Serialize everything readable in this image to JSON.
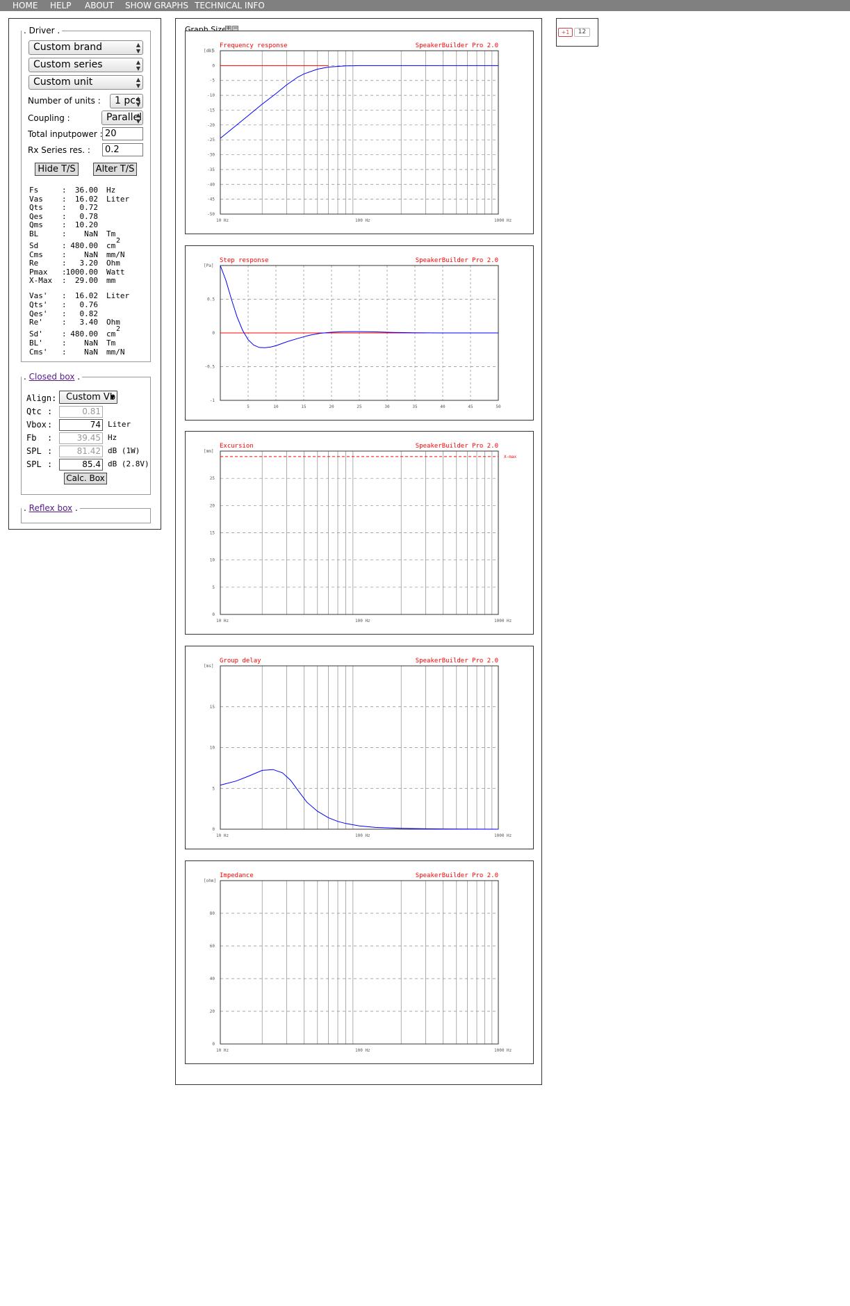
{
  "menu": [
    "HOME",
    "HELP",
    "ABOUT",
    "SHOW GRAPHS",
    "TECHNICAL INFO"
  ],
  "driver": {
    "legend": "Driver",
    "brand": "Custom brand",
    "series": "Custom series",
    "unit": "Custom unit",
    "units_label": "Number of units :",
    "units_value": "1 pcs",
    "coupling_label": "Coupling :",
    "coupling_value": "Parallel",
    "power_label": "Total inputpower :",
    "power_value": "20",
    "rx_label": "Rx Series res. :",
    "rx_value": "0.2",
    "hide_ts": "Hide T/S",
    "alter_ts": "Alter T/S",
    "ts_params": [
      {
        "name": "Fs",
        "value": "36.00",
        "unit": "Hz"
      },
      {
        "name": "Vas",
        "value": "16.02",
        "unit": "Liter"
      },
      {
        "name": "Qts",
        "value": "0.72",
        "unit": ""
      },
      {
        "name": "Qes",
        "value": "0.78",
        "unit": ""
      },
      {
        "name": "Qms",
        "value": "10.20",
        "unit": ""
      },
      {
        "name": "BL",
        "value": "NaN",
        "unit": "Tm"
      },
      {
        "name": "Sd",
        "value": "480.00",
        "unit": "cm",
        "sup": "2"
      },
      {
        "name": "Cms",
        "value": "NaN",
        "unit": "mm/N"
      },
      {
        "name": "Re",
        "value": "3.20",
        "unit": "Ohm"
      },
      {
        "name": "Pmax",
        "value": "1000.00",
        "unit": "Watt"
      },
      {
        "name": "X-Max",
        "value": "29.00",
        "unit": "mm"
      }
    ],
    "ts_derived": [
      {
        "name": "Vas'",
        "value": "16.02",
        "unit": "Liter"
      },
      {
        "name": "Qts'",
        "value": "0.76",
        "unit": ""
      },
      {
        "name": "Qes'",
        "value": "0.82",
        "unit": ""
      },
      {
        "name": "Re'",
        "value": "3.40",
        "unit": "Ohm"
      },
      {
        "name": "Sd'",
        "value": "480.00",
        "unit": "cm",
        "sup": "2"
      },
      {
        "name": "BL'",
        "value": "NaN",
        "unit": "Tm"
      },
      {
        "name": "Cms'",
        "value": "NaN",
        "unit": "mm/N"
      }
    ]
  },
  "closed_box": {
    "legend": "Closed box",
    "align_label": "Align:",
    "align_value": "Custom Vb",
    "rows": [
      {
        "label": "Qtc",
        "value": "0.81",
        "unit": "",
        "readonly": true
      },
      {
        "label": "Vbox",
        "value": "74",
        "unit": "Liter",
        "readonly": false
      },
      {
        "label": "Fb",
        "value": "39.45",
        "unit": "Hz",
        "readonly": true
      },
      {
        "label": "SPL",
        "value": "81.42",
        "unit": "dB (1W)",
        "readonly": true
      },
      {
        "label": "SPL",
        "value": "85.4",
        "unit": "dB (2.8V)",
        "readonly": false
      }
    ],
    "calc_button": "Calc. Box"
  },
  "reflex_box": {
    "legend": "Reflex box"
  },
  "graph_size_label": "Graph Size",
  "zoom_plus": "+",
  "zoom_minus": "−",
  "social": {
    "plus_label": "+1",
    "count": "12"
  },
  "brand_text": "SpeakerBuilder Pro 2.0",
  "chart_data": [
    {
      "type": "line",
      "title": "Frequency response",
      "unit": "[dB]",
      "xscale": "log",
      "xlim": [
        10,
        1000
      ],
      "ylim": [
        -50,
        5
      ],
      "yticks": [
        5,
        0,
        -5,
        -10,
        -15,
        -20,
        -25,
        -30,
        -35,
        -40,
        -45,
        -50
      ],
      "xticklabels": [
        {
          "x": 10,
          "label": "10 Hz"
        },
        {
          "x": 100,
          "label": "100 Hz"
        },
        {
          "x": 1000,
          "label": "1000 Hz"
        }
      ],
      "series": [
        {
          "color": "#ff0000",
          "x": [
            10,
            60
          ],
          "y": [
            0,
            0
          ]
        },
        {
          "color": "#0000ff",
          "x": [
            10,
            15,
            20,
            25,
            30,
            36,
            40,
            50,
            60,
            80,
            100,
            200,
            500,
            1000
          ],
          "y": [
            -24.5,
            -17.8,
            -13,
            -9.5,
            -6.5,
            -3.9,
            -2.8,
            -1.2,
            -0.5,
            -0.1,
            0,
            0,
            0,
            0
          ]
        }
      ]
    },
    {
      "type": "line",
      "title": "Step response",
      "unit": "[Pa]",
      "xscale": "linear",
      "xlim": [
        0,
        50
      ],
      "ylim": [
        -1,
        1
      ],
      "yticks": [
        1,
        0.5,
        0,
        -0.5,
        -1
      ],
      "ytickdisplay": [
        "",
        "0.5",
        "0",
        "-0.5",
        "-1"
      ],
      "xticks": [
        5,
        10,
        15,
        20,
        25,
        30,
        35,
        40,
        45,
        50
      ],
      "series": [
        {
          "color": "#ff0000",
          "x": [
            0,
            37
          ],
          "y": [
            0,
            0
          ]
        },
        {
          "color": "#0000ff",
          "x": [
            0,
            1,
            2,
            3,
            4,
            5,
            6,
            7,
            8,
            9,
            10,
            12,
            14,
            16,
            18,
            20,
            22,
            25,
            28,
            31,
            35,
            40,
            50
          ],
          "y": [
            1,
            0.78,
            0.5,
            0.24,
            0.04,
            -0.1,
            -0.18,
            -0.215,
            -0.22,
            -0.21,
            -0.19,
            -0.13,
            -0.08,
            -0.035,
            -0.005,
            0.01,
            0.018,
            0.02,
            0.015,
            0.008,
            0.002,
            0,
            0
          ]
        }
      ]
    },
    {
      "type": "line",
      "title": "Excursion",
      "unit": "[mm]",
      "xscale": "log",
      "xlim": [
        10,
        1000
      ],
      "ylim": [
        0,
        30
      ],
      "yticks": [
        25,
        20,
        15,
        10,
        5,
        0
      ],
      "xticklabels": [
        {
          "x": 10,
          "label": "10 Hz"
        },
        {
          "x": 100,
          "label": "100 Hz"
        },
        {
          "x": 1000,
          "label": "1000 Hz"
        }
      ],
      "hline": {
        "y": 29,
        "label": "X-max",
        "color": "#ff0000"
      },
      "series": []
    },
    {
      "type": "line",
      "title": "Group delay",
      "unit": "[ms]",
      "xscale": "log",
      "xlim": [
        10,
        1000
      ],
      "ylim": [
        0,
        20
      ],
      "yticks": [
        15,
        10,
        5,
        0
      ],
      "xticklabels": [
        {
          "x": 10,
          "label": "10 Hz"
        },
        {
          "x": 100,
          "label": "100 Hz"
        },
        {
          "x": 1000,
          "label": "1000 Hz"
        }
      ],
      "series": [
        {
          "color": "#0000ff",
          "x": [
            10,
            13,
            16,
            20,
            24,
            28,
            32,
            36,
            42,
            50,
            60,
            70,
            80,
            100,
            130,
            200,
            300,
            500,
            1000
          ],
          "y": [
            5.4,
            5.9,
            6.5,
            7.2,
            7.3,
            6.9,
            6,
            4.8,
            3.3,
            2.2,
            1.4,
            0.95,
            0.7,
            0.4,
            0.22,
            0.1,
            0.05,
            0.02,
            0
          ]
        }
      ]
    },
    {
      "type": "line",
      "title": "Impedance",
      "unit": "[ohm]",
      "xscale": "log",
      "xlim": [
        10,
        1000
      ],
      "ylim": [
        0,
        100
      ],
      "yticks": [
        80,
        60,
        40,
        20,
        0
      ],
      "xticklabels": [
        {
          "x": 10,
          "label": "10 Hz"
        },
        {
          "x": 100,
          "label": "100 Hz"
        },
        {
          "x": 1000,
          "label": "1000 Hz"
        }
      ],
      "series": []
    }
  ]
}
